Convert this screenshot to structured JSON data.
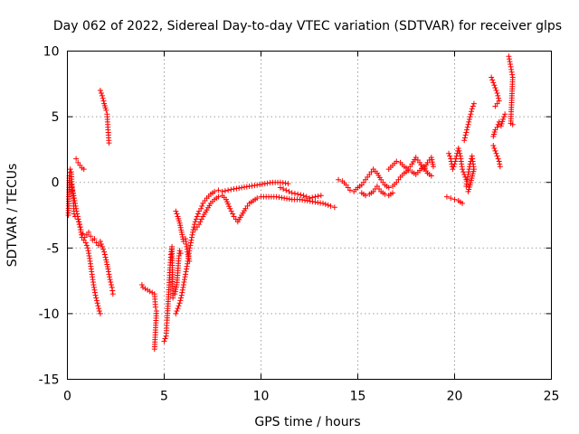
{
  "chart_data": {
    "type": "scatter",
    "title": "Day 062 of 2022, Sidereal Day-to-day VTEC variation (SDTVAR) for receiver glps",
    "xlabel": "GPS time / hours",
    "ylabel": "SDTVAR / TECUs",
    "xlim": [
      0,
      25
    ],
    "ylim": [
      -15,
      10
    ],
    "xticks": [
      0,
      5,
      10,
      15,
      20,
      25
    ],
    "yticks": [
      -15,
      -10,
      -5,
      0,
      5,
      10
    ],
    "xtick_labels": [
      "0",
      "5",
      "10",
      "15",
      "20",
      "25"
    ],
    "ytick_labels": [
      "-15",
      "-10",
      "-5",
      "0",
      "5",
      "10"
    ],
    "grid": true,
    "marker": "+",
    "color": "#ff0000",
    "series": [
      {
        "name": "SDTVAR",
        "segments": [
          [
            [
              0.05,
              -2.5
            ],
            [
              0.1,
              0.5
            ],
            [
              0.15,
              1.0
            ],
            [
              0.2,
              0.8
            ],
            [
              0.25,
              -0.5
            ],
            [
              0.3,
              -1.2
            ],
            [
              0.35,
              -2.4
            ],
            [
              0.4,
              -2.6
            ]
          ],
          [
            [
              0.2,
              -0.2
            ],
            [
              0.3,
              -0.8
            ],
            [
              0.4,
              -1.6
            ],
            [
              0.5,
              -2.4
            ],
            [
              0.6,
              -3.0
            ],
            [
              0.7,
              -3.6
            ],
            [
              0.8,
              -3.9
            ],
            [
              0.9,
              -4.2
            ],
            [
              1.0,
              -4.0
            ],
            [
              1.1,
              -3.8
            ],
            [
              1.2,
              -4.1
            ],
            [
              1.3,
              -4.4
            ],
            [
              1.4,
              -4.3
            ],
            [
              1.5,
              -4.6
            ],
            [
              1.6,
              -4.8
            ],
            [
              1.7,
              -4.5
            ],
            [
              1.8,
              -4.9
            ],
            [
              1.9,
              -5.3
            ],
            [
              2.0,
              -5.9
            ],
            [
              2.1,
              -6.6
            ],
            [
              2.2,
              -7.4
            ],
            [
              2.3,
              -8.0
            ],
            [
              2.35,
              -8.5
            ]
          ],
          [
            [
              0.45,
              1.8
            ],
            [
              0.55,
              1.5
            ],
            [
              0.65,
              1.3
            ],
            [
              0.75,
              1.1
            ],
            [
              0.85,
              1.0
            ]
          ],
          [
            [
              0.55,
              -2.8
            ],
            [
              0.65,
              -3.4
            ],
            [
              0.75,
              -4.2
            ],
            [
              0.85,
              -4.4
            ],
            [
              0.95,
              -4.6
            ],
            [
              1.05,
              -5.0
            ],
            [
              1.15,
              -5.8
            ],
            [
              1.25,
              -6.8
            ],
            [
              1.35,
              -7.8
            ],
            [
              1.45,
              -8.6
            ],
            [
              1.55,
              -9.2
            ],
            [
              1.65,
              -9.8
            ],
            [
              1.7,
              -10.0
            ]
          ],
          [
            [
              1.7,
              7.0
            ],
            [
              1.8,
              6.6
            ],
            [
              1.9,
              6.0
            ],
            [
              2.0,
              5.5
            ],
            [
              2.05,
              5.2
            ],
            [
              2.1,
              4.0
            ],
            [
              2.15,
              3.0
            ]
          ],
          [
            [
              3.85,
              -7.8
            ],
            [
              3.9,
              -8.0
            ],
            [
              4.5,
              -8.5
            ],
            [
              4.55,
              -9.5
            ],
            [
              4.6,
              -9.8
            ],
            [
              4.5,
              -12.7
            ]
          ],
          [
            [
              5.0,
              -12.1
            ],
            [
              5.1,
              -11.7
            ],
            [
              5.15,
              -10.5
            ],
            [
              5.25,
              -8.0
            ],
            [
              5.3,
              -6.5
            ],
            [
              5.35,
              -5.5
            ],
            [
              5.4,
              -4.9
            ],
            [
              5.45,
              -8.8
            ],
            [
              5.55,
              -8.5
            ],
            [
              5.65,
              -7.8
            ],
            [
              5.7,
              -6.9
            ],
            [
              5.75,
              -5.8
            ],
            [
              5.8,
              -5.2
            ],
            [
              5.85,
              -5.4
            ]
          ],
          [
            [
              5.6,
              -2.2
            ],
            [
              5.7,
              -2.6
            ],
            [
              5.8,
              -3.1
            ],
            [
              5.9,
              -3.8
            ],
            [
              6.0,
              -4.5
            ],
            [
              6.1,
              -4.3
            ],
            [
              6.2,
              -5.3
            ],
            [
              6.3,
              -6.0
            ]
          ],
          [
            [
              5.6,
              -10.0
            ],
            [
              5.7,
              -9.6
            ],
            [
              5.8,
              -9.2
            ],
            [
              5.9,
              -8.6
            ],
            [
              6.0,
              -7.8
            ],
            [
              6.1,
              -7.0
            ],
            [
              6.2,
              -6.2
            ],
            [
              6.3,
              -5.2
            ],
            [
              6.4,
              -4.4
            ],
            [
              6.5,
              -3.6
            ],
            [
              6.6,
              -3.0
            ],
            [
              6.7,
              -2.6
            ],
            [
              6.8,
              -2.2
            ],
            [
              6.9,
              -2.0
            ],
            [
              7.0,
              -1.6
            ],
            [
              7.2,
              -1.2
            ],
            [
              7.4,
              -0.9
            ],
            [
              7.6,
              -0.7
            ],
            [
              7.8,
              -0.6
            ],
            [
              8.0,
              -0.7
            ],
            [
              8.3,
              -0.6
            ],
            [
              8.6,
              -0.5
            ],
            [
              9.0,
              -0.4
            ],
            [
              9.4,
              -0.3
            ],
            [
              9.8,
              -0.2
            ],
            [
              10.2,
              -0.1
            ],
            [
              10.6,
              -0.0
            ],
            [
              11.0,
              0.0
            ],
            [
              11.4,
              -0.1
            ]
          ],
          [
            [
              6.6,
              -3.6
            ],
            [
              6.8,
              -3.2
            ],
            [
              7.0,
              -2.6
            ],
            [
              7.2,
              -2.1
            ],
            [
              7.4,
              -1.6
            ],
            [
              7.6,
              -1.3
            ],
            [
              7.8,
              -1.1
            ],
            [
              8.0,
              -1.0
            ],
            [
              8.2,
              -1.3
            ],
            [
              8.4,
              -2.0
            ],
            [
              8.6,
              -2.6
            ],
            [
              8.8,
              -3.0
            ],
            [
              9.0,
              -2.5
            ],
            [
              9.2,
              -2.0
            ],
            [
              9.4,
              -1.6
            ],
            [
              9.6,
              -1.4
            ],
            [
              9.8,
              -1.2
            ],
            [
              10.0,
              -1.1
            ],
            [
              10.4,
              -1.1
            ],
            [
              10.8,
              -1.1
            ],
            [
              11.2,
              -1.2
            ],
            [
              11.6,
              -1.3
            ],
            [
              12.0,
              -1.3
            ],
            [
              12.4,
              -1.4
            ],
            [
              12.8,
              -1.5
            ],
            [
              13.2,
              -1.6
            ],
            [
              13.6,
              -1.8
            ],
            [
              13.8,
              -1.9
            ]
          ],
          [
            [
              11.0,
              -0.4
            ],
            [
              11.3,
              -0.6
            ],
            [
              11.6,
              -0.8
            ],
            [
              11.9,
              -0.9
            ],
            [
              12.2,
              -1.0
            ],
            [
              12.5,
              -1.2
            ],
            [
              12.8,
              -1.1
            ],
            [
              13.1,
              -1.0
            ]
          ],
          [
            [
              14.0,
              0.2
            ],
            [
              14.2,
              0.1
            ],
            [
              14.4,
              -0.2
            ],
            [
              14.6,
              -0.6
            ],
            [
              14.8,
              -0.7
            ],
            [
              15.0,
              -0.4
            ],
            [
              15.2,
              -0.2
            ],
            [
              15.4,
              0.2
            ],
            [
              15.6,
              0.6
            ],
            [
              15.8,
              1.0
            ],
            [
              16.0,
              0.7
            ],
            [
              16.2,
              0.2
            ],
            [
              16.4,
              -0.2
            ],
            [
              16.6,
              -0.4
            ],
            [
              16.8,
              -0.3
            ],
            [
              17.0,
              0.0
            ],
            [
              17.2,
              0.4
            ],
            [
              17.4,
              0.7
            ],
            [
              17.6,
              0.9
            ],
            [
              17.8,
              0.8
            ],
            [
              18.0,
              0.6
            ],
            [
              18.2,
              0.9
            ],
            [
              18.4,
              1.2
            ],
            [
              18.6,
              0.7
            ],
            [
              18.8,
              0.5
            ]
          ],
          [
            [
              15.2,
              -0.8
            ],
            [
              15.4,
              -1.0
            ],
            [
              15.6,
              -0.9
            ],
            [
              15.8,
              -0.7
            ],
            [
              16.0,
              -0.3
            ],
            [
              16.2,
              -0.7
            ],
            [
              16.4,
              -0.9
            ],
            [
              16.6,
              -1.0
            ],
            [
              16.8,
              -0.8
            ]
          ],
          [
            [
              16.6,
              1.0
            ],
            [
              16.8,
              1.3
            ],
            [
              17.0,
              1.6
            ],
            [
              17.2,
              1.5
            ],
            [
              17.4,
              1.2
            ],
            [
              17.6,
              1.0
            ],
            [
              17.8,
              1.4
            ],
            [
              18.0,
              1.9
            ],
            [
              18.2,
              1.5
            ],
            [
              18.4,
              1.0
            ],
            [
              18.6,
              1.5
            ],
            [
              18.8,
              1.9
            ],
            [
              18.9,
              1.2
            ]
          ],
          [
            [
              19.6,
              -1.1
            ],
            [
              19.8,
              -1.2
            ],
            [
              20.0,
              -1.3
            ],
            [
              20.2,
              -1.4
            ],
            [
              20.4,
              -1.6
            ]
          ],
          [
            [
              19.7,
              2.2
            ],
            [
              19.8,
              1.8
            ],
            [
              19.9,
              1.0
            ],
            [
              20.0,
              1.4
            ],
            [
              20.1,
              2.0
            ],
            [
              20.2,
              2.6
            ],
            [
              20.3,
              2.0
            ],
            [
              20.4,
              1.0
            ],
            [
              20.5,
              0.6
            ],
            [
              20.6,
              0.2
            ]
          ],
          [
            [
              20.6,
              -0.3
            ],
            [
              20.7,
              0.6
            ],
            [
              20.8,
              1.4
            ],
            [
              20.9,
              2.0
            ],
            [
              21.0,
              1.0
            ],
            [
              20.8,
              -0.2
            ],
            [
              20.7,
              -0.7
            ]
          ],
          [
            [
              20.5,
              3.2
            ],
            [
              20.6,
              3.8
            ],
            [
              20.7,
              4.4
            ],
            [
              20.8,
              5.0
            ],
            [
              20.9,
              5.6
            ],
            [
              21.0,
              6.0
            ]
          ],
          [
            [
              21.9,
              8.0
            ],
            [
              22.0,
              7.6
            ],
            [
              22.1,
              7.2
            ],
            [
              22.2,
              6.8
            ],
            [
              22.3,
              6.2
            ],
            [
              22.1,
              5.8
            ]
          ],
          [
            [
              22.0,
              3.5
            ],
            [
              22.1,
              4.0
            ],
            [
              22.2,
              4.2
            ],
            [
              22.3,
              4.6
            ],
            [
              22.4,
              4.3
            ],
            [
              22.5,
              4.8
            ],
            [
              22.6,
              5.2
            ]
          ],
          [
            [
              22.0,
              2.8
            ],
            [
              22.1,
              2.4
            ],
            [
              22.2,
              2.0
            ],
            [
              22.3,
              1.6
            ],
            [
              22.35,
              1.2
            ]
          ],
          [
            [
              22.8,
              9.6
            ],
            [
              22.85,
              9.2
            ],
            [
              22.9,
              8.8
            ],
            [
              22.95,
              8.4
            ],
            [
              23.0,
              8.0
            ],
            [
              22.9,
              4.5
            ],
            [
              23.0,
              4.4
            ]
          ]
        ]
      }
    ]
  }
}
